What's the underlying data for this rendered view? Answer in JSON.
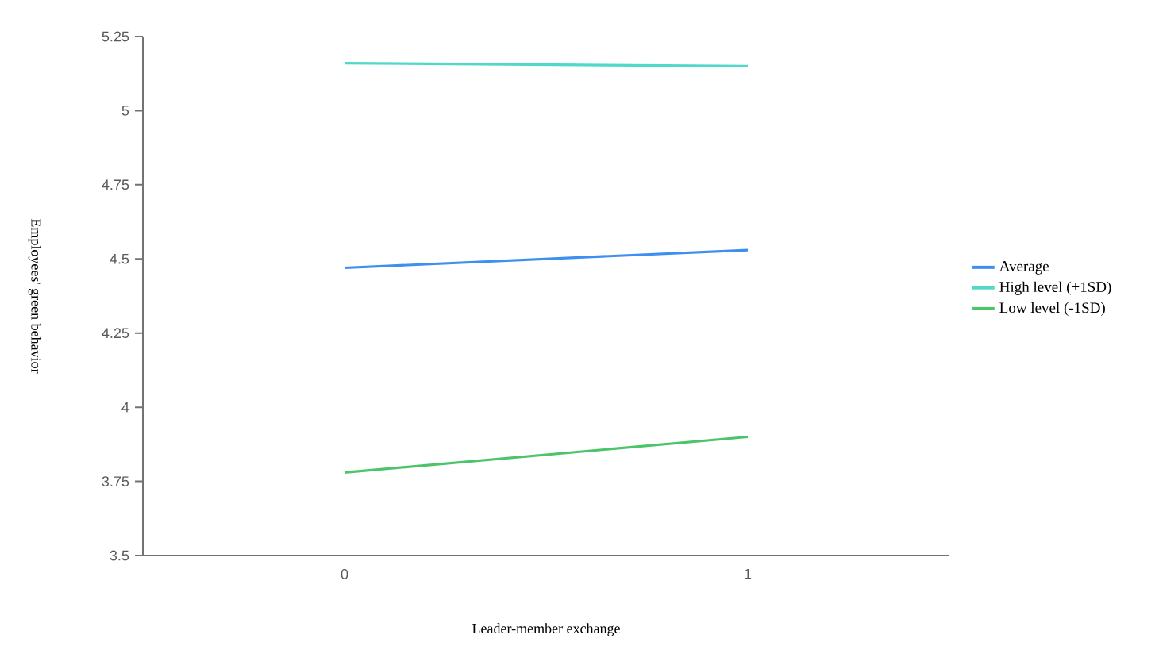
{
  "chart_data": {
    "type": "line",
    "xlabel": "Leader-member exchange",
    "ylabel": "Employees' green behavior",
    "categories": [
      "0",
      "1"
    ],
    "series": [
      {
        "name": "Average",
        "color": "#3d8ff0",
        "values": [
          4.47,
          4.53
        ]
      },
      {
        "name": "High level (+1SD)",
        "color": "#4fd9c8",
        "values": [
          5.16,
          5.15
        ]
      },
      {
        "name": "Low level (-1SD)",
        "color": "#4cc46a",
        "values": [
          3.78,
          3.9
        ]
      }
    ],
    "ylim": [
      3.5,
      5.25
    ],
    "yticks": [
      3.5,
      3.75,
      4,
      4.25,
      4.5,
      4.75,
      5,
      5.25
    ],
    "grid": false,
    "legend": "right",
    "marker": "none",
    "line_style": "solid"
  }
}
